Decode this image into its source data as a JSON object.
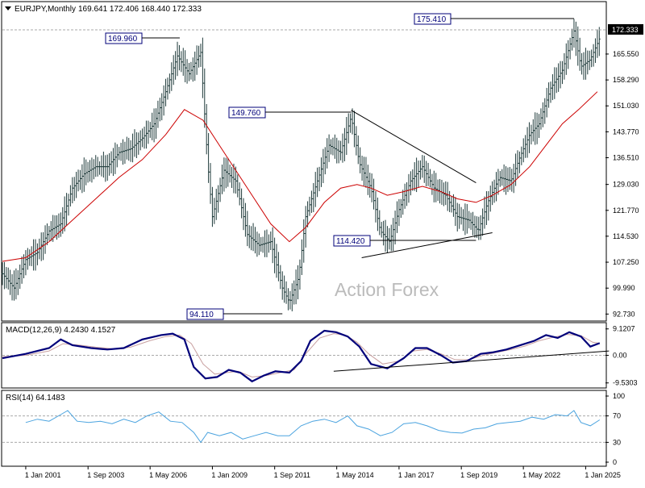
{
  "header": {
    "symbol_line": "EURJPY,Monthly",
    "ohlc": "169.641 172.406 168.440 172.333"
  },
  "watermark": "Action Forex",
  "colors": {
    "price_bars": "#1e3a3a",
    "ma_line": "#cc0000",
    "macd_main": "#00007a",
    "macd_signal": "#c8a0a0",
    "rsi_line": "#4aa3df",
    "label_border": "#00007a",
    "grid_dash": "#aaaaaa",
    "price_tag_bg": "#000000"
  },
  "chart_data": [
    {
      "type": "ohlc-line",
      "name": "price",
      "y_ticks": [
        "172.333",
        "165.550",
        "158.290",
        "151.030",
        "143.770",
        "136.510",
        "129.030",
        "121.770",
        "114.530",
        "107.250",
        "99.990",
        "92.730"
      ],
      "y_tick_values": [
        172.333,
        165.55,
        158.29,
        151.03,
        143.77,
        136.51,
        129.03,
        121.77,
        114.53,
        107.25,
        99.99,
        92.73
      ],
      "ylim": [
        91.0,
        180.0
      ],
      "current_price": 172.333,
      "annotations": [
        {
          "text": "169.960",
          "date": 2007.6
        },
        {
          "text": "94.110",
          "date": 2012.0
        },
        {
          "text": "149.760",
          "date": 2014.95
        },
        {
          "text": "114.420",
          "date": 2020.3
        },
        {
          "text": "175.410",
          "date": 2024.5
        }
      ],
      "trendlines": [
        {
          "from": [
            2014.95,
            149.8
          ],
          "to": [
            2020.3,
            129.5
          ]
        },
        {
          "from": [
            2015.4,
            108.5
          ],
          "to": [
            2021.0,
            115.5
          ]
        }
      ],
      "close_series": [
        [
          2000.0,
          104
        ],
        [
          2000.5,
          100
        ],
        [
          2001.0,
          108
        ],
        [
          2001.5,
          110
        ],
        [
          2002.0,
          116
        ],
        [
          2002.5,
          118
        ],
        [
          2003.0,
          128
        ],
        [
          2003.5,
          132
        ],
        [
          2004.0,
          134
        ],
        [
          2004.5,
          134
        ],
        [
          2005.0,
          138
        ],
        [
          2005.5,
          139
        ],
        [
          2006.0,
          142
        ],
        [
          2006.5,
          146
        ],
        [
          2007.0,
          155
        ],
        [
          2007.5,
          165
        ],
        [
          2008.0,
          160
        ],
        [
          2008.5,
          166
        ],
        [
          2008.8,
          135
        ],
        [
          2009.0,
          120
        ],
        [
          2009.5,
          133
        ],
        [
          2010.0,
          130
        ],
        [
          2010.5,
          115
        ],
        [
          2011.0,
          112
        ],
        [
          2011.5,
          113
        ],
        [
          2012.0,
          100
        ],
        [
          2012.3,
          96
        ],
        [
          2012.7,
          103
        ],
        [
          2013.0,
          120
        ],
        [
          2013.5,
          130
        ],
        [
          2014.0,
          140
        ],
        [
          2014.5,
          138
        ],
        [
          2014.95,
          148
        ],
        [
          2015.3,
          135
        ],
        [
          2015.8,
          128
        ],
        [
          2016.2,
          116
        ],
        [
          2016.6,
          113
        ],
        [
          2017.0,
          122
        ],
        [
          2017.5,
          130
        ],
        [
          2018.0,
          134
        ],
        [
          2018.5,
          128
        ],
        [
          2019.0,
          126
        ],
        [
          2019.5,
          120
        ],
        [
          2020.0,
          119
        ],
        [
          2020.4,
          116
        ],
        [
          2020.8,
          124
        ],
        [
          2021.3,
          131
        ],
        [
          2021.8,
          130
        ],
        [
          2022.2,
          137
        ],
        [
          2022.6,
          143
        ],
        [
          2023.0,
          146
        ],
        [
          2023.5,
          156
        ],
        [
          2024.0,
          161
        ],
        [
          2024.5,
          172
        ],
        [
          2024.8,
          162
        ],
        [
          2025.2,
          164
        ],
        [
          2025.6,
          170
        ]
      ],
      "ma_series": [
        [
          2000.0,
          107.5
        ],
        [
          2001.0,
          108.5
        ],
        [
          2002.0,
          113
        ],
        [
          2003.0,
          119
        ],
        [
          2004.0,
          125
        ],
        [
          2005.0,
          131
        ],
        [
          2006.0,
          136
        ],
        [
          2007.0,
          143
        ],
        [
          2007.8,
          150
        ],
        [
          2008.6,
          147
        ],
        [
          2009.3,
          140
        ],
        [
          2010.0,
          133
        ],
        [
          2010.8,
          125
        ],
        [
          2011.5,
          118
        ],
        [
          2012.3,
          113
        ],
        [
          2013.0,
          117
        ],
        [
          2013.8,
          124
        ],
        [
          2014.5,
          128
        ],
        [
          2015.2,
          129
        ],
        [
          2015.8,
          128
        ],
        [
          2016.5,
          126
        ],
        [
          2017.2,
          127
        ],
        [
          2018.0,
          128.5
        ],
        [
          2018.8,
          127
        ],
        [
          2019.5,
          125
        ],
        [
          2020.3,
          124
        ],
        [
          2021.0,
          126
        ],
        [
          2021.8,
          129
        ],
        [
          2022.6,
          134
        ],
        [
          2023.3,
          140
        ],
        [
          2024.0,
          146
        ],
        [
          2024.7,
          150
        ],
        [
          2025.5,
          155
        ]
      ],
      "x_ticks": [
        "1 Jan 2001",
        "1 Sep 2003",
        "1 May 2006",
        "1 Jan 2009",
        "1 Sep 2011",
        "1 May 2014",
        "1 Jan 2017",
        "1 Sep 2019",
        "1 May 2022",
        "1 Jan 2025"
      ],
      "x_tick_dates": [
        2001.0,
        2003.67,
        2006.33,
        2009.0,
        2011.67,
        2014.33,
        2017.0,
        2019.67,
        2022.33,
        2025.0
      ],
      "xlim": [
        2000.0,
        2025.85
      ]
    },
    {
      "type": "line",
      "name": "macd",
      "title": "MACD(12,26,9) 4.2430 4.1527",
      "y_ticks": [
        "9.1207",
        "0.00",
        "-9.5303"
      ],
      "y_tick_values": [
        9.1207,
        0.0,
        -9.5303
      ],
      "ylim": [
        -11.0,
        11.0
      ],
      "main": [
        [
          2000.0,
          -1.0
        ],
        [
          2001.0,
          0.5
        ],
        [
          2002.0,
          2.5
        ],
        [
          2002.5,
          5.5
        ],
        [
          2003.0,
          3.5
        ],
        [
          2003.8,
          2.5
        ],
        [
          2004.5,
          2.0
        ],
        [
          2005.2,
          2.5
        ],
        [
          2006.0,
          5.5
        ],
        [
          2006.8,
          7.0
        ],
        [
          2007.3,
          7.5
        ],
        [
          2007.8,
          5.5
        ],
        [
          2008.2,
          -4.0
        ],
        [
          2008.7,
          -8.0
        ],
        [
          2009.2,
          -7.5
        ],
        [
          2009.7,
          -5.0
        ],
        [
          2010.2,
          -6.0
        ],
        [
          2010.7,
          -9.0
        ],
        [
          2011.2,
          -7.0
        ],
        [
          2011.7,
          -5.5
        ],
        [
          2012.3,
          -6.0
        ],
        [
          2012.8,
          -2.0
        ],
        [
          2013.2,
          5.0
        ],
        [
          2013.8,
          8.5
        ],
        [
          2014.3,
          8.0
        ],
        [
          2014.8,
          6.5
        ],
        [
          2015.3,
          3.0
        ],
        [
          2015.8,
          -3.0
        ],
        [
          2016.5,
          -4.5
        ],
        [
          2017.2,
          -1.0
        ],
        [
          2017.7,
          2.5
        ],
        [
          2018.2,
          2.5
        ],
        [
          2018.8,
          0.0
        ],
        [
          2019.3,
          -2.5
        ],
        [
          2019.9,
          -2.0
        ],
        [
          2020.5,
          0.5
        ],
        [
          2021.0,
          1.0
        ],
        [
          2021.6,
          2.0
        ],
        [
          2022.2,
          3.5
        ],
        [
          2022.8,
          5.0
        ],
        [
          2023.3,
          7.0
        ],
        [
          2023.8,
          6.0
        ],
        [
          2024.3,
          8.0
        ],
        [
          2024.8,
          6.5
        ],
        [
          2025.2,
          3.0
        ],
        [
          2025.6,
          4.2
        ]
      ],
      "signal": [
        [
          2000.0,
          -0.5
        ],
        [
          2001.0,
          0.0
        ],
        [
          2002.0,
          1.5
        ],
        [
          2002.6,
          4.0
        ],
        [
          2003.3,
          3.5
        ],
        [
          2004.0,
          2.8
        ],
        [
          2004.8,
          2.2
        ],
        [
          2005.5,
          2.8
        ],
        [
          2006.3,
          5.0
        ],
        [
          2007.0,
          6.5
        ],
        [
          2007.6,
          7.0
        ],
        [
          2008.1,
          4.0
        ],
        [
          2008.6,
          -3.0
        ],
        [
          2009.1,
          -6.5
        ],
        [
          2009.6,
          -6.0
        ],
        [
          2010.1,
          -5.5
        ],
        [
          2010.7,
          -7.5
        ],
        [
          2011.3,
          -7.0
        ],
        [
          2011.9,
          -6.0
        ],
        [
          2012.5,
          -5.0
        ],
        [
          2013.0,
          0.5
        ],
        [
          2013.6,
          6.0
        ],
        [
          2014.2,
          7.5
        ],
        [
          2014.7,
          7.0
        ],
        [
          2015.2,
          4.5
        ],
        [
          2015.7,
          0.5
        ],
        [
          2016.3,
          -3.0
        ],
        [
          2017.0,
          -2.0
        ],
        [
          2017.6,
          1.5
        ],
        [
          2018.2,
          2.0
        ],
        [
          2018.8,
          0.5
        ],
        [
          2019.4,
          -1.5
        ],
        [
          2020.0,
          -1.5
        ],
        [
          2020.6,
          0.0
        ],
        [
          2021.2,
          1.0
        ],
        [
          2021.8,
          2.0
        ],
        [
          2022.4,
          3.2
        ],
        [
          2023.0,
          5.0
        ],
        [
          2023.6,
          6.2
        ],
        [
          2024.2,
          7.2
        ],
        [
          2024.8,
          6.8
        ],
        [
          2025.3,
          4.5
        ],
        [
          2025.6,
          4.15
        ]
      ],
      "trendline": {
        "from": [
          2014.2,
          -5.5
        ],
        "to": [
          2026.0,
          1.5
        ]
      }
    },
    {
      "type": "line",
      "name": "rsi",
      "title": "RSI(14) 64.1483",
      "y_ticks": [
        "100",
        "70",
        "30",
        "0"
      ],
      "y_tick_values": [
        100,
        70,
        30,
        0
      ],
      "ylim": [
        0,
        100
      ],
      "levels": [
        70,
        30
      ],
      "series": [
        [
          2001.0,
          60
        ],
        [
          2001.5,
          65
        ],
        [
          2002.0,
          62
        ],
        [
          2002.5,
          72
        ],
        [
          2002.8,
          78
        ],
        [
          2003.2,
          62
        ],
        [
          2003.7,
          60
        ],
        [
          2004.2,
          62
        ],
        [
          2004.7,
          58
        ],
        [
          2005.2,
          65
        ],
        [
          2005.7,
          60
        ],
        [
          2006.2,
          70
        ],
        [
          2006.7,
          76
        ],
        [
          2007.2,
          62
        ],
        [
          2007.7,
          60
        ],
        [
          2008.2,
          45
        ],
        [
          2008.5,
          30
        ],
        [
          2008.8,
          45
        ],
        [
          2009.3,
          40
        ],
        [
          2009.8,
          45
        ],
        [
          2010.3,
          35
        ],
        [
          2010.8,
          40
        ],
        [
          2011.3,
          45
        ],
        [
          2011.8,
          40
        ],
        [
          2012.3,
          40
        ],
        [
          2012.8,
          55
        ],
        [
          2013.3,
          62
        ],
        [
          2013.8,
          65
        ],
        [
          2014.3,
          60
        ],
        [
          2014.8,
          70
        ],
        [
          2015.2,
          55
        ],
        [
          2015.7,
          50
        ],
        [
          2016.2,
          40
        ],
        [
          2016.7,
          45
        ],
        [
          2017.2,
          58
        ],
        [
          2017.7,
          60
        ],
        [
          2018.2,
          55
        ],
        [
          2018.7,
          48
        ],
        [
          2019.2,
          45
        ],
        [
          2019.7,
          44
        ],
        [
          2020.2,
          50
        ],
        [
          2020.7,
          52
        ],
        [
          2021.2,
          58
        ],
        [
          2021.7,
          60
        ],
        [
          2022.2,
          62
        ],
        [
          2022.7,
          68
        ],
        [
          2023.2,
          65
        ],
        [
          2023.7,
          72
        ],
        [
          2024.2,
          70
        ],
        [
          2024.5,
          78
        ],
        [
          2024.8,
          60
        ],
        [
          2025.2,
          55
        ],
        [
          2025.6,
          64
        ]
      ]
    }
  ]
}
